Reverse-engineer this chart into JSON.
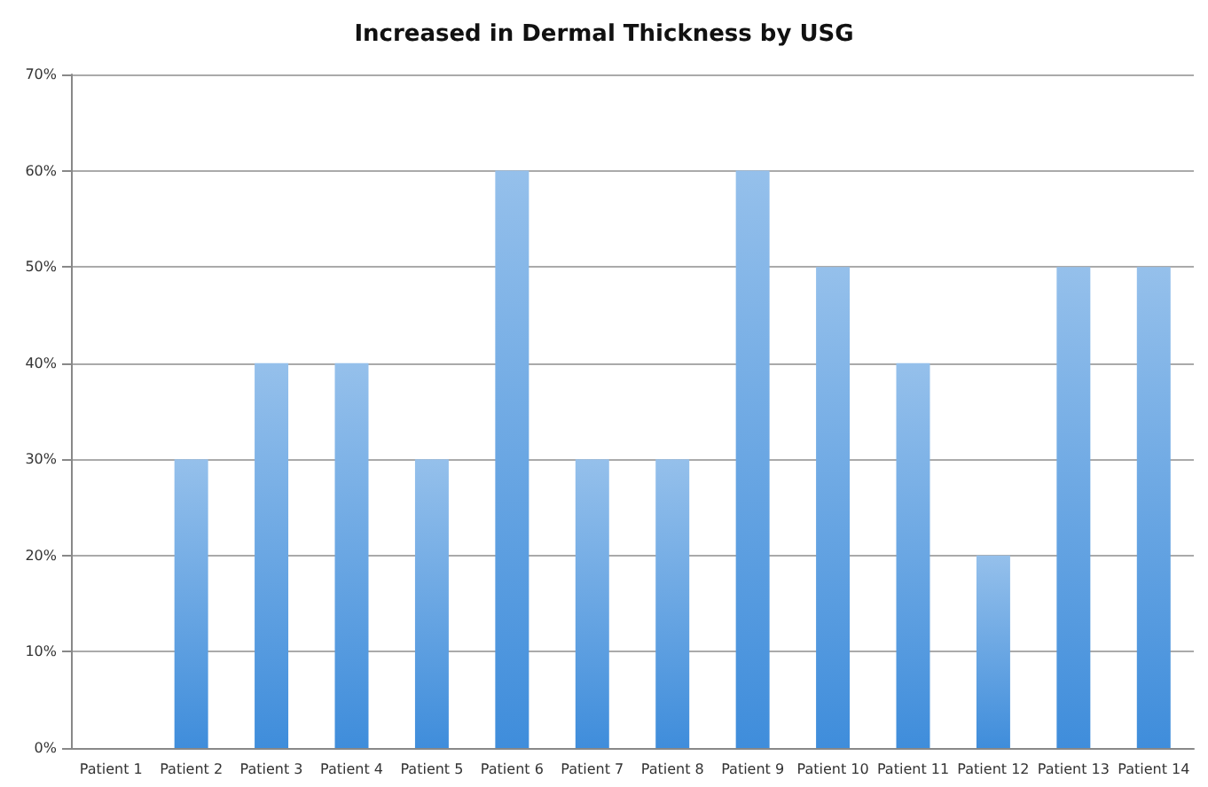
{
  "chart_data": {
    "type": "bar",
    "title": "Increased in Dermal Thickness by USG",
    "categories": [
      "Patient 1",
      "Patient 2",
      "Patient 3",
      "Patient 4",
      "Patient 5",
      "Patient 6",
      "Patient 7",
      "Patient 8",
      "Patient 9",
      "Patient 10",
      "Patient 11",
      "Patient 12",
      "Patient 13",
      "Patient 14"
    ],
    "values": [
      0,
      30,
      40,
      40,
      30,
      60,
      30,
      30,
      60,
      50,
      40,
      20,
      50,
      50
    ],
    "color": "#3f8ddb",
    "ylim": [
      0,
      70
    ],
    "yticks": [
      {
        "value": 0,
        "label": "0%"
      },
      {
        "value": 10,
        "label": "10%"
      },
      {
        "value": 20,
        "label": "20%"
      },
      {
        "value": 30,
        "label": "30%"
      },
      {
        "value": 40,
        "label": "40%"
      },
      {
        "value": 50,
        "label": "50%"
      },
      {
        "value": 60,
        "label": "60%"
      },
      {
        "value": 70,
        "label": "70%"
      }
    ],
    "grid": "y"
  }
}
